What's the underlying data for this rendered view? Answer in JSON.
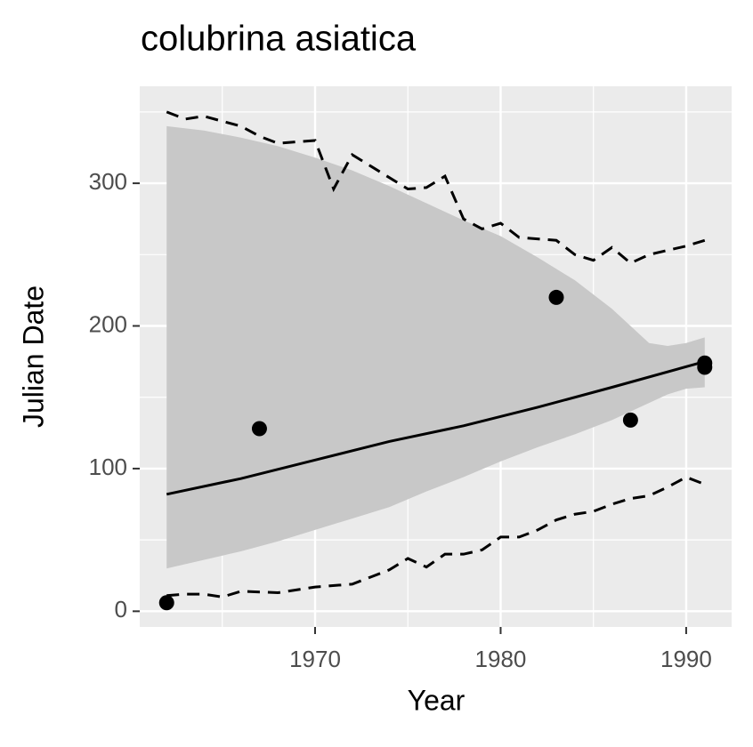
{
  "chart_data": {
    "type": "line",
    "title": "colubrina asiatica",
    "xlabel": "Year",
    "ylabel": "Julian Date",
    "xlim": [
      1960.55,
      1992.45
    ],
    "xticks": [
      1970,
      1980,
      1990
    ],
    "x_minor_breaks": [
      1965,
      1975,
      1985
    ],
    "ylim": [
      -11,
      368
    ],
    "yticks": [
      0,
      100,
      200,
      300
    ],
    "y_minor_breaks": [
      50,
      150,
      250,
      350
    ],
    "grid": true,
    "background": "#ebebeb",
    "series": [
      {
        "kind": "ribbon",
        "color": "#c8c8c8",
        "x": [
          1962,
          1964,
          1966,
          1968,
          1970,
          1972,
          1974,
          1976,
          1978,
          1980,
          1982,
          1984,
          1986,
          1988,
          1989,
          1990,
          1991
        ],
        "upper": [
          340,
          337,
          332,
          326,
          318,
          309,
          298,
          286,
          274,
          263,
          248,
          232,
          212,
          188,
          186,
          188,
          192
        ],
        "lower": [
          30,
          36,
          42,
          49,
          57,
          65,
          73,
          84,
          94,
          105,
          115,
          124,
          134,
          146,
          152,
          156,
          157
        ]
      },
      {
        "kind": "line",
        "color": "#000000",
        "dash": false,
        "x": [
          1962,
          1966,
          1970,
          1974,
          1978,
          1982,
          1986,
          1991
        ],
        "values": [
          82,
          93,
          106,
          119,
          130,
          143,
          157,
          175
        ]
      },
      {
        "kind": "line",
        "color": "#000000",
        "dash": true,
        "x": [
          1962,
          1963,
          1964,
          1966,
          1967,
          1968,
          1970,
          1971,
          1972,
          1973,
          1975,
          1976,
          1977,
          1978,
          1979,
          1980,
          1981,
          1983,
          1984,
          1985,
          1986,
          1987,
          1988,
          1990,
          1991
        ],
        "values": [
          350,
          345,
          347,
          340,
          333,
          328,
          330,
          296,
          320,
          312,
          296,
          297,
          305,
          275,
          268,
          272,
          262,
          260,
          250,
          246,
          255,
          244,
          250,
          256,
          260
        ]
      },
      {
        "kind": "line",
        "color": "#000000",
        "dash": true,
        "x": [
          1962,
          1963,
          1964,
          1965,
          1966,
          1968,
          1970,
          1972,
          1973,
          1974,
          1975,
          1976,
          1977,
          1978,
          1979,
          1980,
          1981,
          1982,
          1983,
          1984,
          1985,
          1986,
          1987,
          1988,
          1989,
          1990,
          1991
        ],
        "values": [
          11,
          12,
          12,
          10,
          14,
          13,
          17,
          19,
          24,
          29,
          37,
          31,
          40,
          40,
          43,
          52,
          52,
          57,
          64,
          68,
          70,
          75,
          79,
          81,
          87,
          94,
          89
        ]
      },
      {
        "kind": "scatter",
        "color": "#000000",
        "x": [
          1962,
          1967,
          1983,
          1987,
          1991,
          1991
        ],
        "values": [
          6,
          128,
          220,
          134,
          174,
          171
        ]
      }
    ]
  }
}
